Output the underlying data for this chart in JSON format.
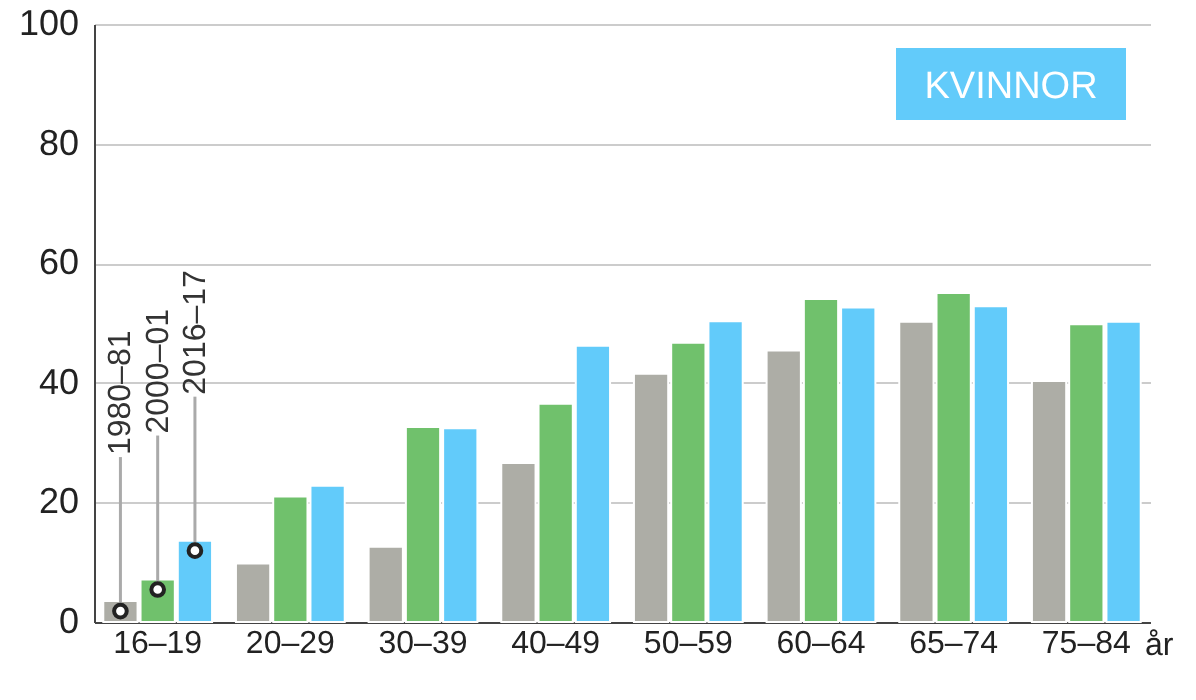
{
  "chart_data": {
    "type": "bar",
    "title": "KVINNOR",
    "xlabel": "år",
    "categories": [
      "16–19",
      "20–29",
      "30–39",
      "40–49",
      "50–59",
      "60–64",
      "65–74",
      "75–84"
    ],
    "series": [
      {
        "name": "1980–81",
        "color": "#adada6",
        "values": [
          3.5,
          9.8,
          12.6,
          26.6,
          41.5,
          45.4,
          50.2,
          40.3
        ]
      },
      {
        "name": "2000–01",
        "color": "#70c16c",
        "values": [
          7.1,
          21.0,
          32.6,
          36.5,
          46.7,
          54.0,
          55.0,
          49.8
        ]
      },
      {
        "name": "2016–17",
        "color": "#62cbfa",
        "values": [
          13.6,
          22.8,
          32.4,
          46.2,
          50.3,
          52.6,
          52.8,
          50.2
        ]
      }
    ],
    "ylim": [
      0,
      100
    ],
    "yticks": [
      0,
      20,
      40,
      60,
      80,
      100
    ],
    "grid": "y"
  }
}
